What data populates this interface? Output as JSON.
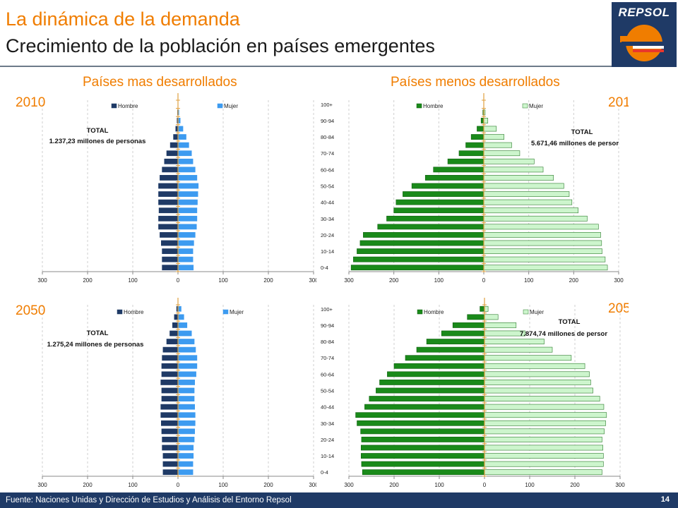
{
  "header": {
    "title": "La dinámica de la demanda",
    "subtitle": "Crecimiento de la población en países emergentes",
    "logo_text": "REPSOL"
  },
  "columns": {
    "left_title": "Países mas desarrollados",
    "right_title": "Países menos desarrollados"
  },
  "footer": {
    "source": "Fuente: Naciones Unidas y Dirección de Estudios y Análisis del Entorno Repsol",
    "page": "14"
  },
  "colors": {
    "accent": "#f07d00",
    "brand": "#1f3a66",
    "dev_male": "#1f3a66",
    "dev_female": "#3d9bf0",
    "less_male": "#1a8a1a",
    "less_female": "#cdf5cd"
  },
  "chart_data": [
    {
      "type": "bar",
      "orientation": "horizontal-pyramid",
      "year_label": "2010",
      "total_label": "TOTAL",
      "total_value": "1.237,23 millones de personas",
      "categories": [
        "0-4",
        "5-9",
        "10-14",
        "15-19",
        "20-24",
        "25-29",
        "30-34",
        "35-39",
        "40-44",
        "45-49",
        "50-54",
        "55-59",
        "60-64",
        "65-69",
        "70-74",
        "75-79",
        "80-84",
        "85-89",
        "90-94",
        "95-99",
        "100+"
      ],
      "category_labels": [],
      "x_ticks": [
        "300",
        "200",
        "100",
        "0",
        "100",
        "200",
        "300"
      ],
      "xlim": [
        -300,
        300
      ],
      "series": [
        {
          "name": "Hombre",
          "values": [
            -35,
            -35,
            -35,
            -37,
            -40,
            -43,
            -43,
            -42,
            -43,
            -43,
            -43,
            -40,
            -35,
            -30,
            -25,
            -17,
            -10,
            -5,
            -2,
            -1,
            0
          ]
        },
        {
          "name": "Mujer",
          "values": [
            34,
            33,
            33,
            35,
            38,
            41,
            42,
            42,
            43,
            44,
            45,
            42,
            38,
            33,
            30,
            24,
            18,
            11,
            5,
            2,
            0
          ]
        }
      ]
    },
    {
      "type": "bar",
      "orientation": "horizontal-pyramid",
      "year_label": "201",
      "total_label": "TOTAL",
      "total_value": "5.671,46 millones de persor",
      "categories": [
        "0-4",
        "5-9",
        "10-14",
        "15-19",
        "20-24",
        "25-29",
        "30-34",
        "35-39",
        "40-44",
        "45-49",
        "50-54",
        "55-59",
        "60-64",
        "65-69",
        "70-74",
        "75-79",
        "80-84",
        "85-89",
        "90-94",
        "95-99",
        "100+"
      ],
      "category_labels": [
        "0-4",
        "10-14",
        "20-24",
        "30-34",
        "40-44",
        "50-54",
        "60-64",
        "70-74",
        "80-84",
        "90-94",
        "100+"
      ],
      "x_ticks": [
        "300",
        "200",
        "100",
        "0",
        "100",
        "200",
        "300"
      ],
      "xlim": [
        -300,
        300
      ],
      "series": [
        {
          "name": "Hombre",
          "values": [
            -295,
            -290,
            -282,
            -275,
            -268,
            -236,
            -216,
            -200,
            -195,
            -180,
            -160,
            -130,
            -112,
            -80,
            -55,
            -40,
            -28,
            -15,
            -6,
            -2,
            0
          ]
        },
        {
          "name": "Mujer",
          "values": [
            275,
            270,
            263,
            262,
            260,
            255,
            230,
            210,
            196,
            190,
            178,
            155,
            132,
            112,
            80,
            62,
            45,
            28,
            9,
            3,
            0
          ]
        }
      ]
    },
    {
      "type": "bar",
      "orientation": "horizontal-pyramid",
      "year_label": "2050",
      "total_label": "TOTAL",
      "total_value": "1.275,24 millones de personas",
      "categories": [
        "0-4",
        "5-9",
        "10-14",
        "15-19",
        "20-24",
        "25-29",
        "30-34",
        "35-39",
        "40-44",
        "45-49",
        "50-54",
        "55-59",
        "60-64",
        "65-69",
        "70-74",
        "75-79",
        "80-84",
        "85-89",
        "90-94",
        "95-99",
        "100+"
      ],
      "category_labels": [],
      "x_ticks": [
        "300",
        "200",
        "100",
        "0",
        "100",
        "200",
        "300"
      ],
      "xlim": [
        -300,
        300
      ],
      "series": [
        {
          "name": "Hombre",
          "values": [
            -33,
            -33,
            -33,
            -35,
            -35,
            -36,
            -37,
            -38,
            -38,
            -36,
            -36,
            -38,
            -36,
            -36,
            -35,
            -33,
            -25,
            -18,
            -12,
            -8,
            -3
          ]
        },
        {
          "name": "Mujer",
          "values": [
            33,
            33,
            34,
            34,
            36,
            37,
            38,
            38,
            37,
            36,
            36,
            37,
            40,
            42,
            42,
            39,
            36,
            30,
            20,
            13,
            7
          ]
        }
      ]
    },
    {
      "type": "bar",
      "orientation": "horizontal-pyramid",
      "year_label": "205",
      "total_label": "TOTAL",
      "total_value": "7.874,74 millones de persor",
      "categories": [
        "0-4",
        "5-9",
        "10-14",
        "15-19",
        "20-24",
        "25-29",
        "30-34",
        "35-39",
        "40-44",
        "45-49",
        "50-54",
        "55-59",
        "60-64",
        "65-69",
        "70-74",
        "75-79",
        "80-84",
        "85-89",
        "90-94",
        "95-99",
        "100+"
      ],
      "category_labels": [
        "0-4",
        "10-14",
        "20-24",
        "30-34",
        "40-44",
        "50-54",
        "60-64",
        "70-74",
        "80-84",
        "90-94",
        "100+"
      ],
      "x_ticks": [
        "300",
        "200",
        "100",
        "0",
        "100",
        "200",
        "300"
      ],
      "xlim": [
        -300,
        300
      ],
      "series": [
        {
          "name": "Hombre",
          "values": [
            -270,
            -272,
            -273,
            -273,
            -272,
            -274,
            -282,
            -285,
            -265,
            -255,
            -240,
            -232,
            -215,
            -200,
            -175,
            -150,
            -128,
            -95,
            -70,
            -38,
            -10
          ]
        },
        {
          "name": "Mujer",
          "values": [
            260,
            263,
            263,
            262,
            260,
            265,
            268,
            270,
            264,
            255,
            240,
            235,
            232,
            222,
            192,
            150,
            132,
            90,
            70,
            30,
            8
          ]
        }
      ]
    }
  ]
}
